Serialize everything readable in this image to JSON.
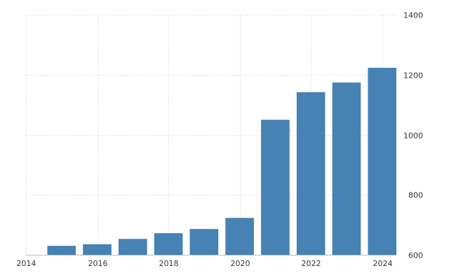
{
  "chart_data": {
    "type": "bar",
    "title": "",
    "xlabel": "",
    "ylabel": "",
    "categories": [
      "2015",
      "2016",
      "2017",
      "2018",
      "2019",
      "2020",
      "2021",
      "2022",
      "2023",
      "2024"
    ],
    "values": [
      630,
      635,
      653,
      672,
      686,
      723,
      1050,
      1142,
      1174,
      1223
    ],
    "xlim": [
      2014,
      2024.4
    ],
    "x_ticks": [
      "2014",
      "2016",
      "2018",
      "2020",
      "2022",
      "2024"
    ],
    "ylim": [
      600,
      1400
    ],
    "y_ticks": [
      "600",
      "800",
      "1000",
      "1200",
      "1400"
    ],
    "y_axis_side": "right",
    "grid": true,
    "legend": "none",
    "colors": {
      "bar": "#4682b4",
      "grid": "#cfcfcf",
      "text": "#333333"
    }
  }
}
